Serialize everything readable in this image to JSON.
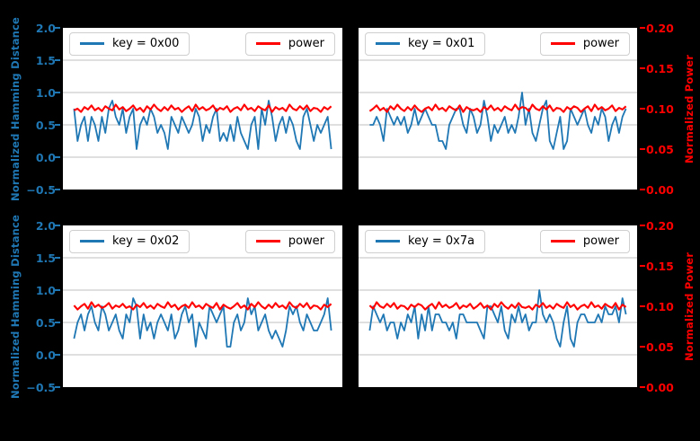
{
  "figure": {
    "background": "#000000"
  },
  "axes": {
    "left": {
      "label": "Normalized Hamming Distance",
      "color": "#1f77b4",
      "range": [
        -0.5,
        2.0
      ],
      "ticks": [
        "2.0",
        "1.5",
        "1.0",
        "0.5",
        "0.0",
        "−0.5"
      ],
      "tick_values": [
        2.0,
        1.5,
        1.0,
        0.5,
        0.0,
        -0.5
      ]
    },
    "right": {
      "label": "Normalized Power",
      "color": "#ff0000",
      "range": [
        0.0,
        0.2
      ],
      "ticks": [
        "0.20",
        "0.15",
        "0.10",
        "0.05",
        "0.00"
      ],
      "tick_values": [
        0.2,
        0.15,
        0.1,
        0.05,
        0.0
      ]
    },
    "grid_values": [
      1.5,
      1.0,
      0.5,
      0.0
    ],
    "grid_color": "#cccccc",
    "legend_position": "upper-left-and-upper-right",
    "grid": true
  },
  "chart_data": [
    {
      "type": "line",
      "series": [
        {
          "name": "key = 0x00",
          "axis": "left",
          "color": "#1f77b4",
          "values": [
            0.75,
            0.25,
            0.5,
            0.625,
            0.25,
            0.625,
            0.5,
            0.25,
            0.625,
            0.375,
            0.75,
            0.875,
            0.625,
            0.5,
            0.75,
            0.375,
            0.625,
            0.75,
            0.125,
            0.5,
            0.625,
            0.5,
            0.75,
            0.625,
            0.375,
            0.5,
            0.375,
            0.125,
            0.625,
            0.5,
            0.375,
            0.625,
            0.5,
            0.375,
            0.5,
            0.75,
            0.625,
            0.25,
            0.5,
            0.375,
            0.625,
            0.75,
            0.25,
            0.375,
            0.25,
            0.5,
            0.25,
            0.625,
            0.375,
            0.25,
            0.125,
            0.5,
            0.625,
            0.125,
            0.75,
            0.5,
            0.875,
            0.625,
            0.25,
            0.5,
            0.625,
            0.375,
            0.625,
            0.5,
            0.25,
            0.125,
            0.625,
            0.75,
            0.5,
            0.25,
            0.5,
            0.375,
            0.5,
            0.625,
            0.125
          ]
        },
        {
          "name": "power",
          "axis": "right",
          "color": "#ff0000",
          "values": [
            0.098,
            0.1,
            0.096,
            0.102,
            0.099,
            0.104,
            0.098,
            0.101,
            0.097,
            0.103,
            0.1,
            0.098,
            0.105,
            0.099,
            0.102,
            0.097,
            0.1,
            0.104,
            0.098,
            0.101,
            0.096,
            0.103,
            0.099,
            0.105,
            0.1,
            0.097,
            0.102,
            0.098,
            0.104,
            0.099,
            0.101,
            0.096,
            0.1,
            0.103,
            0.097,
            0.105,
            0.099,
            0.102,
            0.098,
            0.1,
            0.104,
            0.097,
            0.101,
            0.099,
            0.103,
            0.096,
            0.1,
            0.102,
            0.098,
            0.105,
            0.099,
            0.101,
            0.097,
            0.103,
            0.1,
            0.098,
            0.104,
            0.096,
            0.102,
            0.099,
            0.101,
            0.097,
            0.105,
            0.1,
            0.098,
            0.103,
            0.099,
            0.104,
            0.097,
            0.101,
            0.1,
            0.096,
            0.102,
            0.099,
            0.103
          ]
        }
      ]
    },
    {
      "type": "line",
      "series": [
        {
          "name": "key = 0x01",
          "axis": "left",
          "color": "#1f77b4",
          "values": [
            0.5,
            0.5,
            0.625,
            0.5,
            0.25,
            0.75,
            0.625,
            0.5,
            0.625,
            0.5,
            0.625,
            0.375,
            0.5,
            0.75,
            0.5,
            0.625,
            0.75,
            0.625,
            0.5,
            0.5,
            0.25,
            0.25,
            0.125,
            0.5,
            0.625,
            0.75,
            0.75,
            0.5,
            0.375,
            0.75,
            0.625,
            0.375,
            0.5,
            0.875,
            0.625,
            0.25,
            0.5,
            0.375,
            0.5,
            0.625,
            0.375,
            0.5,
            0.375,
            0.625,
            1.0,
            0.5,
            0.75,
            0.375,
            0.25,
            0.5,
            0.75,
            0.875,
            0.25,
            0.125,
            0.375,
            0.625,
            0.125,
            0.25,
            0.75,
            0.625,
            0.5,
            0.625,
            0.75,
            0.5,
            0.375,
            0.625,
            0.5,
            0.75,
            0.625,
            0.25,
            0.5,
            0.625,
            0.375,
            0.625,
            0.75
          ]
        },
        {
          "name": "power",
          "axis": "right",
          "color": "#ff0000",
          "values": [
            0.097,
            0.1,
            0.104,
            0.098,
            0.101,
            0.096,
            0.103,
            0.099,
            0.105,
            0.1,
            0.097,
            0.102,
            0.098,
            0.104,
            0.099,
            0.096,
            0.1,
            0.102,
            0.098,
            0.105,
            0.099,
            0.101,
            0.097,
            0.103,
            0.1,
            0.098,
            0.104,
            0.096,
            0.102,
            0.099,
            0.098,
            0.1,
            0.096,
            0.102,
            0.099,
            0.104,
            0.098,
            0.101,
            0.097,
            0.103,
            0.1,
            0.098,
            0.105,
            0.099,
            0.102,
            0.101,
            0.097,
            0.105,
            0.1,
            0.098,
            0.103,
            0.099,
            0.104,
            0.097,
            0.101,
            0.1,
            0.096,
            0.102,
            0.099,
            0.103,
            0.101,
            0.096,
            0.1,
            0.103,
            0.097,
            0.105,
            0.099,
            0.102,
            0.098,
            0.1,
            0.104,
            0.097,
            0.101,
            0.099,
            0.103
          ]
        }
      ]
    },
    {
      "type": "line",
      "series": [
        {
          "name": "key = 0x02",
          "axis": "left",
          "color": "#1f77b4",
          "values": [
            0.25,
            0.5,
            0.625,
            0.375,
            0.625,
            0.75,
            0.5,
            0.375,
            0.75,
            0.625,
            0.375,
            0.5,
            0.625,
            0.375,
            0.25,
            0.625,
            0.5,
            0.875,
            0.75,
            0.25,
            0.625,
            0.375,
            0.5,
            0.25,
            0.5,
            0.625,
            0.5,
            0.375,
            0.625,
            0.25,
            0.375,
            0.625,
            0.75,
            0.5,
            0.625,
            0.125,
            0.5,
            0.375,
            0.25,
            0.75,
            0.625,
            0.5,
            0.625,
            0.75,
            0.125,
            0.125,
            0.5,
            0.625,
            0.375,
            0.5,
            0.875,
            0.625,
            0.75,
            0.375,
            0.5,
            0.625,
            0.375,
            0.25,
            0.375,
            0.25,
            0.125,
            0.375,
            0.75,
            0.625,
            0.75,
            0.5,
            0.375,
            0.625,
            0.5,
            0.375,
            0.375,
            0.5,
            0.625,
            0.875,
            0.375
          ]
        },
        {
          "name": "power",
          "axis": "right",
          "color": "#ff0000",
          "values": [
            0.101,
            0.096,
            0.1,
            0.103,
            0.097,
            0.105,
            0.099,
            0.102,
            0.098,
            0.1,
            0.104,
            0.097,
            0.101,
            0.099,
            0.103,
            0.098,
            0.1,
            0.096,
            0.102,
            0.099,
            0.104,
            0.098,
            0.101,
            0.097,
            0.103,
            0.1,
            0.098,
            0.105,
            0.099,
            0.102,
            0.096,
            0.1,
            0.102,
            0.098,
            0.105,
            0.099,
            0.101,
            0.097,
            0.103,
            0.1,
            0.098,
            0.104,
            0.096,
            0.102,
            0.099,
            0.097,
            0.1,
            0.104,
            0.098,
            0.101,
            0.096,
            0.103,
            0.099,
            0.105,
            0.1,
            0.097,
            0.102,
            0.098,
            0.104,
            0.099,
            0.101,
            0.097,
            0.105,
            0.1,
            0.098,
            0.103,
            0.099,
            0.104,
            0.097,
            0.101,
            0.1,
            0.096,
            0.102,
            0.099,
            0.103
          ]
        }
      ]
    },
    {
      "type": "line",
      "series": [
        {
          "name": "key = 0x7a",
          "axis": "left",
          "color": "#1f77b4",
          "values": [
            0.375,
            0.75,
            0.625,
            0.5,
            0.625,
            0.375,
            0.5,
            0.5,
            0.25,
            0.5,
            0.375,
            0.625,
            0.5,
            0.75,
            0.25,
            0.625,
            0.375,
            0.75,
            0.375,
            0.625,
            0.625,
            0.5,
            0.5,
            0.375,
            0.5,
            0.25,
            0.625,
            0.625,
            0.5,
            0.5,
            0.5,
            0.5,
            0.375,
            0.25,
            0.75,
            0.75,
            0.625,
            0.5,
            0.75,
            0.375,
            0.25,
            0.625,
            0.5,
            0.75,
            0.5,
            0.625,
            0.375,
            0.5,
            0.5,
            1.0,
            0.625,
            0.5,
            0.625,
            0.5,
            0.25,
            0.125,
            0.5,
            0.75,
            0.25,
            0.125,
            0.5,
            0.625,
            0.625,
            0.5,
            0.5,
            0.5,
            0.625,
            0.5,
            0.75,
            0.625,
            0.625,
            0.75,
            0.5,
            0.875,
            0.625
          ]
        },
        {
          "name": "power",
          "axis": "right",
          "color": "#ff0000",
          "values": [
            0.101,
            0.097,
            0.105,
            0.1,
            0.098,
            0.103,
            0.099,
            0.104,
            0.097,
            0.101,
            0.1,
            0.096,
            0.102,
            0.099,
            0.103,
            0.101,
            0.096,
            0.1,
            0.103,
            0.097,
            0.105,
            0.099,
            0.102,
            0.098,
            0.1,
            0.104,
            0.097,
            0.101,
            0.099,
            0.103,
            0.097,
            0.1,
            0.104,
            0.098,
            0.101,
            0.096,
            0.103,
            0.099,
            0.105,
            0.1,
            0.097,
            0.102,
            0.098,
            0.104,
            0.099,
            0.098,
            0.1,
            0.096,
            0.102,
            0.099,
            0.104,
            0.098,
            0.101,
            0.097,
            0.103,
            0.1,
            0.098,
            0.105,
            0.099,
            0.102,
            0.096,
            0.1,
            0.102,
            0.098,
            0.105,
            0.099,
            0.101,
            0.097,
            0.103,
            0.1,
            0.098,
            0.104,
            0.096,
            0.102,
            0.099
          ]
        }
      ]
    }
  ]
}
